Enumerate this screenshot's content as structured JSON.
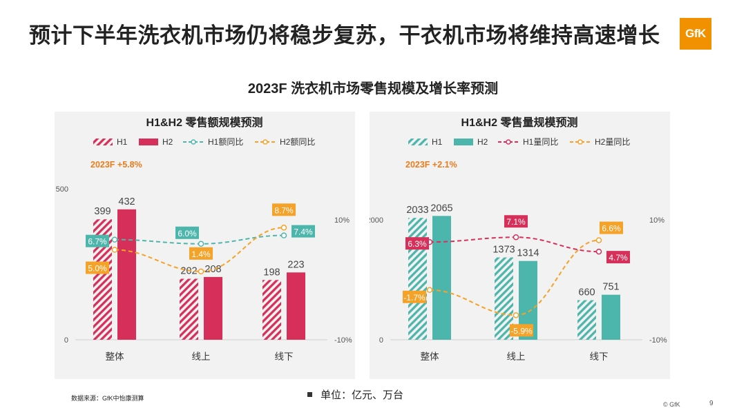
{
  "slide": {
    "title": "预计下半年洗衣机市场仍将稳步复苏，干衣机市场将维持高速增长",
    "logo": "GfK",
    "subtitle": "2023F 洗衣机市场零售规模及增长率预测",
    "source": "数据来源：GfK中怡康测算",
    "unit": "单位：亿元、万台",
    "copyright": "© GfK",
    "page": "9"
  },
  "colors": {
    "h1_value": "#d6305a",
    "h2_value": "#d6305a",
    "h1_volume": "#4db6ac",
    "h2_volume": "#4db6ac",
    "line_h1_value": "#4db6ac",
    "line_h2": "#f5a229",
    "line_h1_volume": "#d6305a",
    "panel_bg": "#f2f2f2"
  },
  "chart_data": [
    {
      "type": "bar",
      "title": "H1&H2 零售额规模预测",
      "annotation": "2023F +5.8%",
      "categories": [
        "整体",
        "线上",
        "线下"
      ],
      "series": [
        {
          "name": "H1",
          "kind": "bar",
          "pattern": "hatched",
          "axis": "left",
          "values": [
            399,
            202,
            198
          ],
          "labels": [
            "399",
            "202",
            "198"
          ]
        },
        {
          "name": "H2",
          "kind": "bar",
          "pattern": "solid",
          "axis": "left",
          "values": [
            432,
            208,
            223
          ],
          "labels": [
            "432",
            "208",
            "223"
          ]
        },
        {
          "name": "H1额同比",
          "kind": "line",
          "axis": "right",
          "values": [
            6.7,
            6.0,
            7.4
          ],
          "labels": [
            "6.7%",
            "6.0%",
            "7.4%"
          ]
        },
        {
          "name": "H2额同比",
          "kind": "line",
          "axis": "right",
          "values": [
            5.0,
            1.4,
            8.7
          ],
          "labels": [
            "5.0%",
            "1.4%",
            "8.7%"
          ]
        }
      ],
      "left_axis": {
        "ticks": [
          "0",
          "500"
        ],
        "range": [
          0,
          500
        ]
      },
      "right_axis": {
        "ticks": [
          "-10%",
          "10%"
        ],
        "range": [
          -10,
          10
        ]
      }
    },
    {
      "type": "bar",
      "title": "H1&H2 零售量规模预测",
      "annotation": "2023F +2.1%",
      "categories": [
        "整体",
        "线上",
        "线下"
      ],
      "series": [
        {
          "name": "H1",
          "kind": "bar",
          "pattern": "hatched",
          "axis": "left",
          "values": [
            2033,
            1373,
            660
          ],
          "labels": [
            "2033",
            "1373",
            "660"
          ]
        },
        {
          "name": "H2",
          "kind": "bar",
          "pattern": "solid",
          "axis": "left",
          "values": [
            2065,
            1314,
            751
          ],
          "labels": [
            "2065",
            "1314",
            "751"
          ]
        },
        {
          "name": "H1量同比",
          "kind": "line",
          "axis": "right",
          "values": [
            6.3,
            7.1,
            4.7
          ],
          "labels": [
            "6.3%",
            "7.1%",
            "4.7%"
          ]
        },
        {
          "name": "H2量同比",
          "kind": "line",
          "axis": "right",
          "values": [
            -1.7,
            -5.9,
            6.6
          ],
          "labels": [
            "-1.7%",
            "-5.9%",
            "6.6%"
          ]
        }
      ],
      "left_axis": {
        "ticks": [
          "0",
          "2000"
        ],
        "range": [
          0,
          2000
        ]
      },
      "right_axis": {
        "ticks": [
          "-10%",
          "10%"
        ],
        "range": [
          -10,
          10
        ]
      }
    }
  ]
}
